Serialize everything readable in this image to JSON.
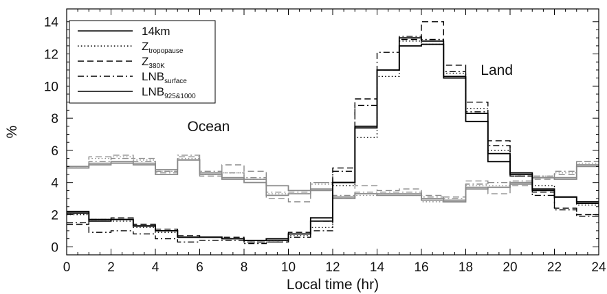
{
  "chart_data": {
    "type": "line",
    "xlabel": "Local time (hr)",
    "ylabel": "%",
    "xlim": [
      0,
      24
    ],
    "ylim": [
      -0.5,
      14.8
    ],
    "xticks": [
      0,
      2,
      4,
      6,
      8,
      10,
      12,
      14,
      16,
      18,
      20,
      22,
      24
    ],
    "yticks": [
      0,
      2,
      4,
      6,
      8,
      10,
      12,
      14
    ],
    "grid": false,
    "legend_position": "top-left",
    "annotations": [
      {
        "text": "Ocean",
        "x": 6.4,
        "y": 7.2
      },
      {
        "text": "Land",
        "x": 19.4,
        "y": 10.7
      }
    ],
    "legend": [
      {
        "main": "14km",
        "sub": "",
        "style": "solid"
      },
      {
        "main": "Z",
        "sub": "tropopause",
        "style": "dotted"
      },
      {
        "main": "Z",
        "sub": "380K",
        "style": "dashed"
      },
      {
        "main": "LNB",
        "sub": "surface",
        "style": "dashdot"
      },
      {
        "main": "LNB",
        "sub": "925&1000",
        "style": "solid"
      }
    ],
    "hours": [
      0.5,
      1.5,
      2.5,
      3.5,
      4.5,
      5.5,
      6.5,
      7.5,
      8.5,
      9.5,
      10.5,
      11.5,
      12.5,
      13.5,
      14.5,
      15.5,
      16.5,
      17.5,
      18.5,
      19.5,
      20.5,
      21.5,
      22.5,
      23.5
    ],
    "land_series": [
      {
        "name": "14km",
        "style": "solid",
        "color": "#000000",
        "values": [
          2.1,
          1.6,
          1.7,
          1.3,
          1.0,
          0.6,
          0.6,
          0.5,
          0.4,
          0.5,
          0.8,
          1.6,
          4.0,
          7.4,
          11.0,
          13.0,
          12.8,
          10.6,
          8.3,
          5.8,
          4.6,
          3.5,
          3.1,
          2.7
        ]
      },
      {
        "name": "Z tropopause",
        "style": "dotted",
        "color": "#000000",
        "values": [
          2.0,
          1.7,
          1.6,
          1.2,
          0.9,
          0.6,
          0.6,
          0.5,
          0.3,
          0.4,
          0.7,
          1.2,
          3.8,
          6.8,
          10.6,
          12.8,
          12.6,
          10.8,
          8.6,
          6.0,
          4.6,
          3.8,
          3.1,
          2.6
        ]
      },
      {
        "name": "Z 380K",
        "style": "dashed",
        "color": "#000000",
        "values": [
          1.4,
          1.7,
          1.8,
          1.4,
          1.1,
          0.7,
          0.6,
          0.6,
          0.3,
          0.3,
          0.9,
          1.6,
          4.9,
          9.2,
          11.0,
          12.9,
          14.0,
          11.3,
          9.0,
          6.6,
          4.4,
          3.4,
          2.4,
          2.0
        ]
      },
      {
        "name": "LNB surface",
        "style": "dashdot",
        "color": "#000000",
        "values": [
          1.5,
          0.9,
          1.0,
          0.8,
          0.5,
          0.3,
          0.4,
          0.4,
          0.2,
          0.3,
          0.6,
          1.0,
          4.7,
          8.8,
          12.1,
          13.1,
          12.9,
          10.9,
          8.4,
          6.3,
          4.4,
          3.2,
          2.3,
          1.9
        ]
      },
      {
        "name": "LNB 925&1000",
        "style": "solid",
        "color": "#000000",
        "values": [
          2.2,
          1.7,
          1.7,
          1.3,
          1.0,
          0.6,
          0.6,
          0.5,
          0.4,
          0.4,
          0.8,
          1.8,
          4.0,
          7.5,
          11.0,
          12.5,
          12.6,
          10.5,
          7.8,
          5.3,
          4.5,
          3.6,
          3.1,
          2.8
        ]
      }
    ],
    "ocean_series": [
      {
        "name": "14km",
        "style": "solid",
        "color": "#8a8a8a",
        "values": [
          5.0,
          5.1,
          5.3,
          5.2,
          4.8,
          5.4,
          4.6,
          4.3,
          4.2,
          3.8,
          3.5,
          3.6,
          3.0,
          3.3,
          3.3,
          3.3,
          3.0,
          2.9,
          3.7,
          3.7,
          3.9,
          4.3,
          4.3,
          5.0
        ]
      },
      {
        "name": "Z tropopause",
        "style": "dotted",
        "color": "#8a8a8a",
        "values": [
          5.0,
          5.5,
          5.6,
          5.4,
          4.7,
          5.5,
          4.5,
          4.6,
          4.2,
          3.3,
          3.3,
          3.9,
          3.1,
          3.2,
          3.3,
          3.2,
          2.8,
          2.8,
          3.8,
          3.8,
          4.0,
          4.4,
          4.6,
          5.2
        ]
      },
      {
        "name": "Z 380K",
        "style": "dashed",
        "color": "#8a8a8a",
        "values": [
          5.0,
          5.6,
          5.7,
          5.5,
          4.7,
          5.6,
          4.4,
          5.1,
          4.7,
          3.0,
          2.8,
          4.0,
          3.0,
          3.8,
          3.5,
          3.6,
          3.2,
          3.1,
          4.1,
          3.3,
          3.8,
          4.2,
          4.5,
          5.3
        ]
      },
      {
        "name": "LNB surface",
        "style": "dashdot",
        "color": "#8a8a8a",
        "values": [
          4.9,
          5.3,
          5.5,
          5.3,
          4.6,
          5.7,
          4.7,
          4.6,
          4.3,
          3.4,
          3.4,
          4.0,
          3.2,
          3.4,
          3.4,
          3.4,
          3.1,
          3.0,
          3.9,
          4.0,
          4.1,
          4.4,
          4.7,
          5.3
        ]
      },
      {
        "name": "LNB 925&1000",
        "style": "solid",
        "color": "#8a8a8a",
        "values": [
          4.9,
          5.2,
          5.2,
          5.1,
          4.5,
          5.4,
          4.5,
          4.2,
          4.0,
          3.2,
          3.3,
          3.5,
          3.1,
          3.3,
          3.2,
          3.2,
          2.9,
          2.8,
          3.6,
          3.7,
          4.0,
          4.3,
          4.2,
          5.1
        ]
      }
    ]
  }
}
